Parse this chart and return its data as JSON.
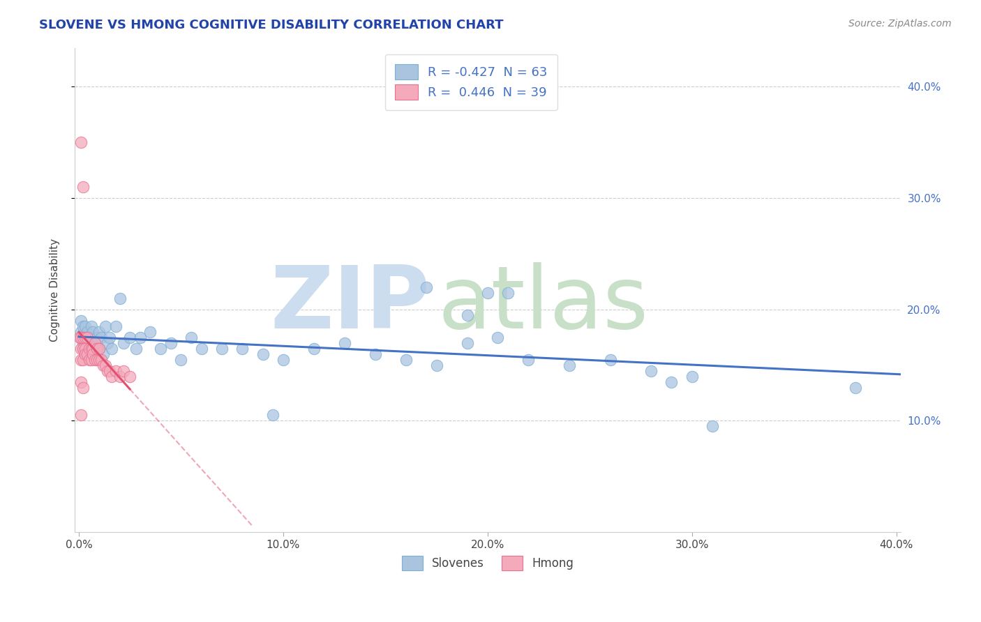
{
  "title": "SLOVENE VS HMONG COGNITIVE DISABILITY CORRELATION CHART",
  "source": "Source: ZipAtlas.com",
  "ylabel": "Cognitive Disability",
  "xlim": [
    -0.002,
    0.402
  ],
  "ylim": [
    0.0,
    0.435
  ],
  "xticks": [
    0.0,
    0.1,
    0.2,
    0.3,
    0.4
  ],
  "yticks": [
    0.1,
    0.2,
    0.3,
    0.4
  ],
  "xtick_labels": [
    "0.0%",
    "10.0%",
    "20.0%",
    "30.0%",
    "40.0%"
  ],
  "ytick_labels": [
    "10.0%",
    "20.0%",
    "30.0%",
    "40.0%"
  ],
  "legend_r1": "R = -0.427",
  "legend_n1": "N = 63",
  "legend_r2": "R =  0.446",
  "legend_n2": "N = 39",
  "background_color": "#ffffff",
  "grid_color": "#cccccc",
  "blue_fill": "#aac4e0",
  "blue_edge": "#7bafd4",
  "pink_fill": "#f4aabb",
  "pink_edge": "#e87090",
  "trend_blue": "#4472c4",
  "trend_pink": "#e05070",
  "right_tick_color": "#4472c4",
  "title_color": "#2244aa",
  "source_color": "#888888",
  "watermark_zip_color": "#ccddf0",
  "watermark_atlas_color": "#c8e0c8",
  "slovene_x": [
    0.001,
    0.001,
    0.002,
    0.002,
    0.002,
    0.003,
    0.003,
    0.003,
    0.004,
    0.004,
    0.005,
    0.005,
    0.006,
    0.006,
    0.007,
    0.007,
    0.008,
    0.008,
    0.009,
    0.01,
    0.01,
    0.011,
    0.012,
    0.013,
    0.014,
    0.015,
    0.016,
    0.018,
    0.02,
    0.022,
    0.025,
    0.028,
    0.03,
    0.035,
    0.04,
    0.045,
    0.05,
    0.055,
    0.06,
    0.07,
    0.08,
    0.09,
    0.1,
    0.115,
    0.13,
    0.145,
    0.16,
    0.175,
    0.19,
    0.205,
    0.22,
    0.24,
    0.26,
    0.28,
    0.21,
    0.3,
    0.17,
    0.19,
    0.29,
    0.38,
    0.2,
    0.095,
    0.31
  ],
  "slovene_y": [
    0.19,
    0.18,
    0.185,
    0.17,
    0.165,
    0.175,
    0.16,
    0.185,
    0.175,
    0.18,
    0.17,
    0.165,
    0.185,
    0.175,
    0.165,
    0.18,
    0.17,
    0.16,
    0.175,
    0.165,
    0.18,
    0.175,
    0.16,
    0.185,
    0.17,
    0.175,
    0.165,
    0.185,
    0.21,
    0.17,
    0.175,
    0.165,
    0.175,
    0.18,
    0.165,
    0.17,
    0.155,
    0.175,
    0.165,
    0.165,
    0.165,
    0.16,
    0.155,
    0.165,
    0.17,
    0.16,
    0.155,
    0.15,
    0.17,
    0.175,
    0.155,
    0.15,
    0.155,
    0.145,
    0.215,
    0.14,
    0.22,
    0.195,
    0.135,
    0.13,
    0.215,
    0.105,
    0.095
  ],
  "hmong_x": [
    0.0005,
    0.001,
    0.001,
    0.001,
    0.001,
    0.002,
    0.002,
    0.002,
    0.002,
    0.003,
    0.003,
    0.003,
    0.004,
    0.004,
    0.005,
    0.005,
    0.006,
    0.006,
    0.007,
    0.007,
    0.008,
    0.008,
    0.009,
    0.009,
    0.01,
    0.01,
    0.011,
    0.012,
    0.013,
    0.014,
    0.015,
    0.016,
    0.018,
    0.02,
    0.022,
    0.025,
    0.001,
    0.002,
    0.001
  ],
  "hmong_y": [
    0.175,
    0.35,
    0.175,
    0.165,
    0.155,
    0.31,
    0.175,
    0.165,
    0.155,
    0.175,
    0.165,
    0.16,
    0.175,
    0.16,
    0.165,
    0.155,
    0.165,
    0.155,
    0.165,
    0.16,
    0.17,
    0.155,
    0.165,
    0.155,
    0.165,
    0.155,
    0.155,
    0.15,
    0.15,
    0.145,
    0.145,
    0.14,
    0.145,
    0.14,
    0.145,
    0.14,
    0.135,
    0.13,
    0.105
  ]
}
